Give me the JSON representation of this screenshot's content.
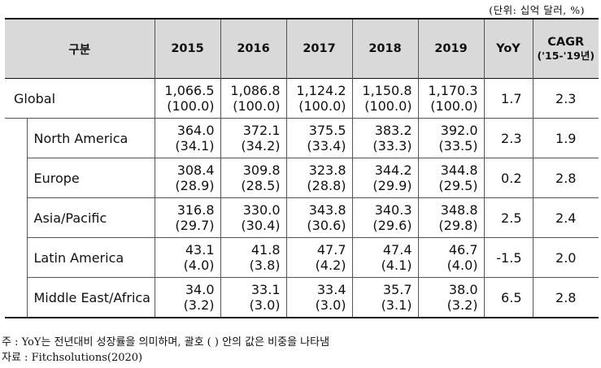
{
  "unit_note": "(단위: 십억 달러, %)",
  "table": {
    "header": {
      "category": "구분",
      "years": [
        "2015",
        "2016",
        "2017",
        "2018",
        "2019"
      ],
      "yoy": "YoY",
      "cagr": "CAGR",
      "cagr_period": "('15-'19년)"
    },
    "rows": [
      {
        "name": "Global",
        "values": [
          "1,066.5",
          "1,086.8",
          "1,124.2",
          "1,150.8",
          "1,170.3"
        ],
        "shares": [
          "(100.0)",
          "(100.0)",
          "(100.0)",
          "(100.0)",
          "(100.0)"
        ],
        "yoy": "1.7",
        "cagr": "2.3"
      },
      {
        "name": "North America",
        "values": [
          "364.0",
          "372.1",
          "375.5",
          "383.2",
          "392.0"
        ],
        "shares": [
          "(34.1)",
          "(34.2)",
          "(33.4)",
          "(33.3)",
          "(33.5)"
        ],
        "yoy": "2.3",
        "cagr": "1.9"
      },
      {
        "name": "Europe",
        "values": [
          "308.4",
          "309.8",
          "323.8",
          "344.2",
          "344.8"
        ],
        "shares": [
          "(28.9)",
          "(28.5)",
          "(28.8)",
          "(29.9)",
          "(29.5)"
        ],
        "yoy": "0.2",
        "cagr": "2.8"
      },
      {
        "name": "Asia/Pacific",
        "values": [
          "316.8",
          "330.0",
          "343.8",
          "340.3",
          "348.8"
        ],
        "shares": [
          "(29.7)",
          "(30.4)",
          "(30.6)",
          "(29.6)",
          "(29.8)"
        ],
        "yoy": "2.5",
        "cagr": "2.4"
      },
      {
        "name": "Latin America",
        "values": [
          "43.1",
          "41.8",
          "47.7",
          "47.4",
          "46.7"
        ],
        "shares": [
          "(4.0)",
          "(3.8)",
          "(4.2)",
          "(4.1)",
          "(4.0)"
        ],
        "yoy": "-1.5",
        "cagr": "2.0"
      },
      {
        "name": "Middle East/Africa",
        "values": [
          "34.0",
          "33.1",
          "33.4",
          "35.7",
          "38.0"
        ],
        "shares": [
          "(3.2)",
          "(3.0)",
          "(3.0)",
          "(3.1)",
          "(3.2)"
        ],
        "yoy": "6.5",
        "cagr": "2.8"
      }
    ]
  },
  "footnote": "주 : YoY는 전년대비 성장률을 의미하며, 괄호 ( ) 안의 값은 비중을 나타냄",
  "source": "자료 : Fitchsolutions(2020)"
}
